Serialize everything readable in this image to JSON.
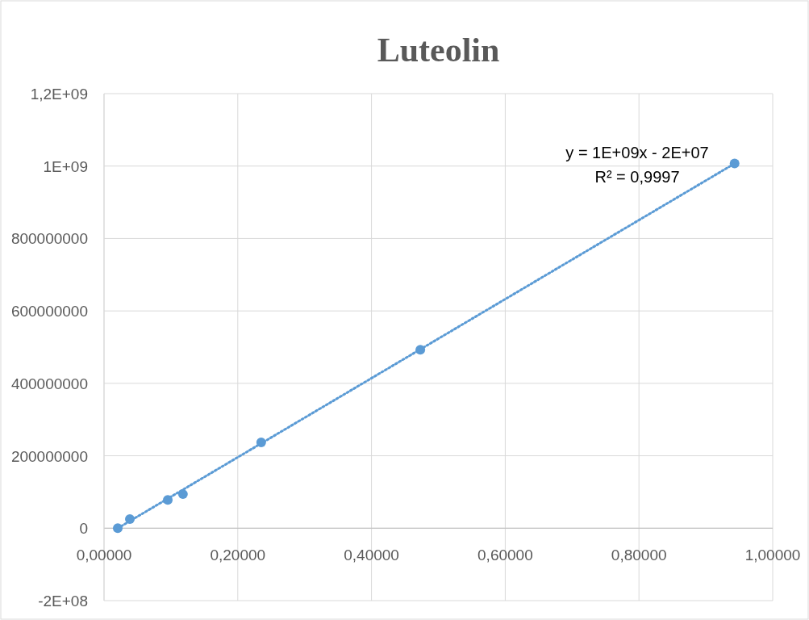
{
  "chart_data": {
    "type": "scatter",
    "title": "Luteolin",
    "x": [
      0.0205,
      0.0386,
      0.0953,
      0.118,
      0.235,
      0.473,
      0.943
    ],
    "series": [
      {
        "type": "scatter",
        "color": "#5b9bd5",
        "marker": "circle",
        "values": [
          0,
          25000000,
          78000000,
          94000000,
          237000000,
          493000000,
          1007000000
        ]
      },
      {
        "type": "line",
        "color": "#5b9bd5",
        "line_style": "dotted",
        "marker": "none",
        "x": [
          0.0205,
          0.943
        ],
        "values": [
          0,
          1007000000
        ]
      }
    ],
    "xlim": [
      0,
      1
    ],
    "xticks": [
      {
        "value": 0,
        "label": "0,00000"
      },
      {
        "value": 0.2,
        "label": "0,20000"
      },
      {
        "value": 0.4,
        "label": "0,40000"
      },
      {
        "value": 0.6,
        "label": "0,60000"
      },
      {
        "value": 0.8,
        "label": "0,80000"
      },
      {
        "value": 1,
        "label": "1,00000"
      }
    ],
    "ylim": [
      -200000000,
      1200000000
    ],
    "yticks": [
      {
        "value": -200000000,
        "label": "-2E+08"
      },
      0,
      200000000,
      400000000,
      600000000,
      800000000,
      {
        "value": 1000000000,
        "label": "1E+09"
      },
      {
        "value": 1200000000,
        "label": "1,2E+09"
      }
    ],
    "grid": true,
    "annotations": [
      "y = 1E+09x - 2E+07",
      "R² = 0,9997"
    ]
  }
}
